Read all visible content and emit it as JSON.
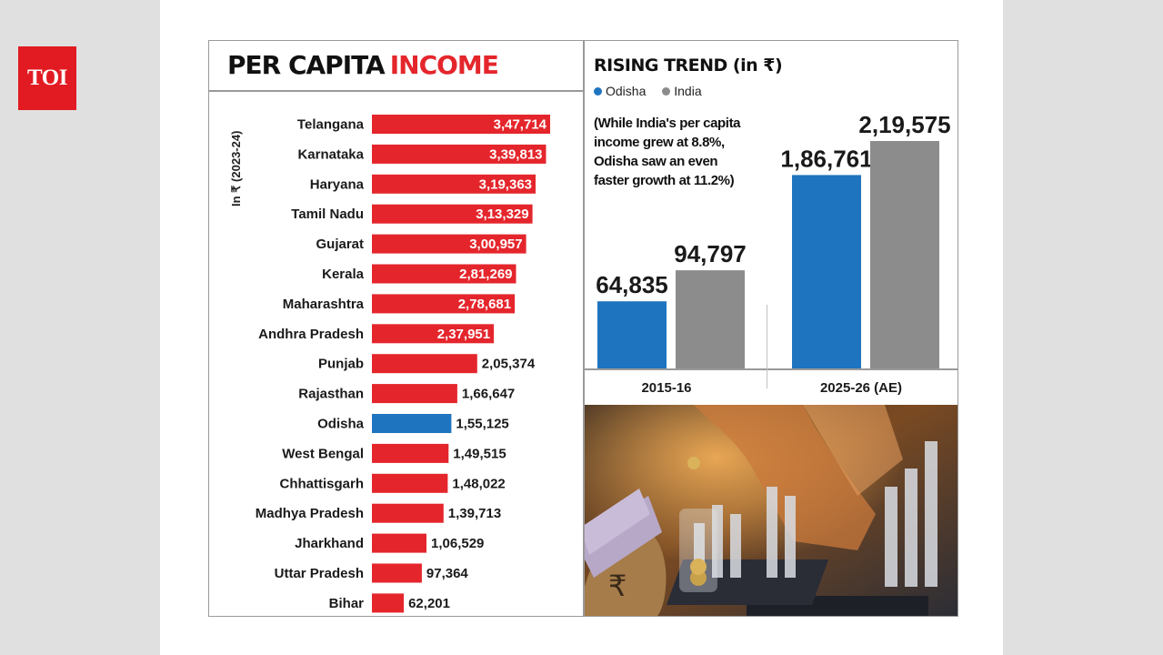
{
  "logo": {
    "text": "TOI"
  },
  "left_panel": {
    "title_part1": "PER CAPITA",
    "title_part2": "INCOME",
    "unit_label": "In ₹ (2023-24)"
  },
  "right_panel": {
    "title": "RISING TREND (in ₹)",
    "note": "(While India's per capita income grew at 8.8%, Odisha saw an even faster growth at 11.2%)"
  },
  "colors": {
    "state_bar": "#e4262c",
    "odisha": "#1f74c0",
    "india": "#8c8c8c",
    "title_accent": "#e4262c"
  },
  "chart_data": [
    {
      "type": "bar",
      "orientation": "horizontal",
      "title": "PER CAPITA INCOME",
      "ylabel": "In ₹ (2023-24)",
      "categories": [
        "Telangana",
        "Karnataka",
        "Haryana",
        "Tamil Nadu",
        "Gujarat",
        "Kerala",
        "Maharashtra",
        "Andhra Pradesh",
        "Punjab",
        "Rajasthan",
        "Odisha",
        "West Bengal",
        "Chhattisgarh",
        "Madhya Pradesh",
        "Jharkhand",
        "Uttar Pradesh",
        "Bihar"
      ],
      "values": [
        347714,
        339813,
        319363,
        313329,
        300957,
        281269,
        278681,
        237951,
        205374,
        166647,
        155125,
        149515,
        148022,
        139713,
        106529,
        97364,
        62201
      ],
      "labels": [
        "3,47,714",
        "3,39,813",
        "3,19,363",
        "3,13,329",
        "3,00,957",
        "2,81,269",
        "2,78,681",
        "2,37,951",
        "2,05,374",
        "1,66,647",
        "1,55,125",
        "1,49,515",
        "1,48,022",
        "1,39,713",
        "1,06,529",
        "97,364",
        "62,201"
      ],
      "highlight": "Odisha"
    },
    {
      "type": "bar",
      "title": "RISING TREND (in ₹)",
      "categories": [
        "2015-16",
        "2025-26 (AE)"
      ],
      "series": [
        {
          "name": "Odisha",
          "values": [
            64835,
            186761
          ],
          "labels": [
            "64,835",
            "1,86,761"
          ]
        },
        {
          "name": "India",
          "values": [
            94797,
            219575
          ],
          "labels": [
            "94,797",
            "2,19,575"
          ]
        }
      ],
      "legend": "top-left"
    }
  ]
}
